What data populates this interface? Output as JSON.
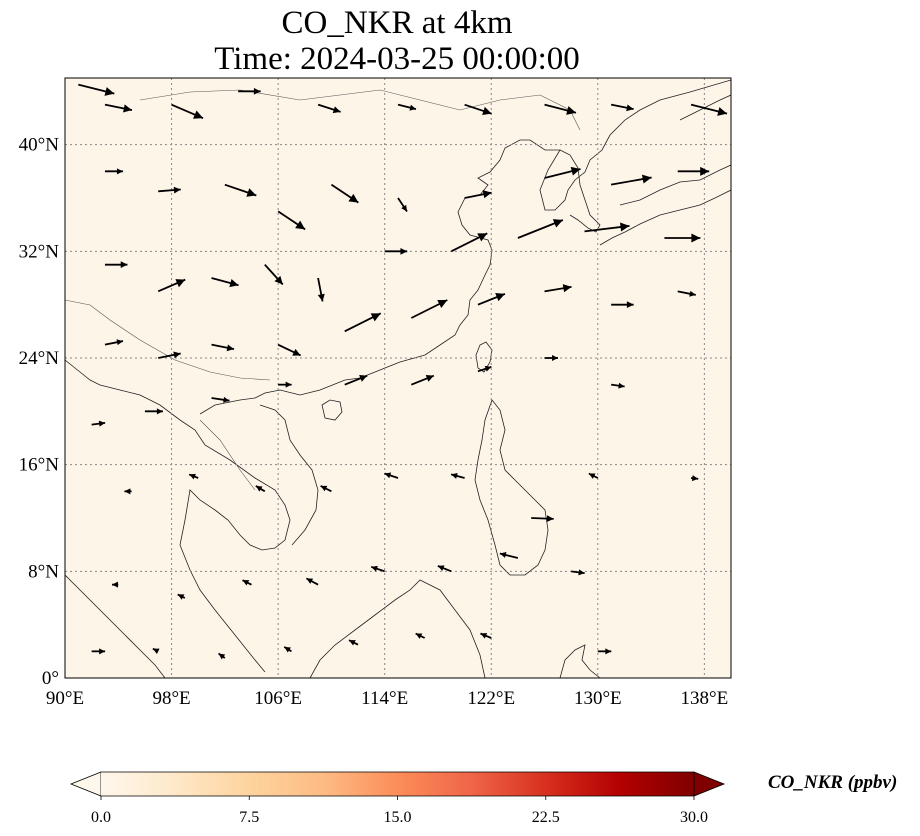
{
  "title": {
    "line1": "CO_NKR at 4km",
    "line2": "Time: 2024-03-25 00:00:00"
  },
  "map": {
    "lon_range": [
      90,
      140
    ],
    "lat_range": [
      0,
      45
    ],
    "background_color": "#fef5e9",
    "lon_ticks": [
      {
        "value": 90,
        "label": "90°E"
      },
      {
        "value": 98,
        "label": "98°E"
      },
      {
        "value": 106,
        "label": "106°E"
      },
      {
        "value": 114,
        "label": "114°E"
      },
      {
        "value": 122,
        "label": "122°E"
      },
      {
        "value": 130,
        "label": "130°E"
      },
      {
        "value": 138,
        "label": "138°E"
      }
    ],
    "lat_ticks": [
      {
        "value": 0,
        "label": "0°"
      },
      {
        "value": 8,
        "label": "8°N"
      },
      {
        "value": 16,
        "label": "16°N"
      },
      {
        "value": 24,
        "label": "24°N"
      },
      {
        "value": 32,
        "label": "32°N"
      },
      {
        "value": 40,
        "label": "40°N"
      }
    ],
    "gridlines": "dotted"
  },
  "colorbar": {
    "label": "CO_NKR (ppbv)",
    "colormap": "OrRd",
    "range": [
      0,
      30
    ],
    "extend": "both",
    "colors": [
      "#fff7ec",
      "#fee8c8",
      "#fdd49e",
      "#fdbb84",
      "#fc8d59",
      "#ef6548",
      "#d7301f",
      "#b30000",
      "#7f0000"
    ],
    "ticks": [
      {
        "value": 0,
        "label": "0.0"
      },
      {
        "value": 7.5,
        "label": "7.5"
      },
      {
        "value": 15,
        "label": "15.0"
      },
      {
        "value": 22.5,
        "label": "22.5"
      },
      {
        "value": 30,
        "label": "30.0"
      }
    ]
  },
  "chart_data": {
    "type": "map",
    "title": "CO_NKR at 4km",
    "subtitle": "Time: 2024-03-25 00:00:00",
    "variable": "CO_NKR",
    "units": "ppbv",
    "height": "4km",
    "time": "2024-03-25 00:00:00",
    "field_value_approx": 0.5,
    "wind_vectors": [
      {
        "lon": 91,
        "lat": 44.5,
        "u": 4,
        "v": -1
      },
      {
        "lon": 93,
        "lat": 43,
        "u": 3,
        "v": -0.6
      },
      {
        "lon": 98,
        "lat": 43,
        "u": 3.5,
        "v": -1.5
      },
      {
        "lon": 103,
        "lat": 44,
        "u": 2.5,
        "v": 0
      },
      {
        "lon": 109,
        "lat": 43,
        "u": 2.5,
        "v": -0.8
      },
      {
        "lon": 115,
        "lat": 43,
        "u": 2,
        "v": -0.5
      },
      {
        "lon": 120,
        "lat": 43,
        "u": 3,
        "v": -1
      },
      {
        "lon": 126,
        "lat": 43,
        "u": 3.5,
        "v": -0.9
      },
      {
        "lon": 131,
        "lat": 43,
        "u": 2.5,
        "v": -0.5
      },
      {
        "lon": 137,
        "lat": 43,
        "u": 4,
        "v": -1
      },
      {
        "lon": 93,
        "lat": 38,
        "u": 2,
        "v": 0
      },
      {
        "lon": 97,
        "lat": 36.5,
        "u": 2.5,
        "v": 0.2
      },
      {
        "lon": 102,
        "lat": 37,
        "u": 3.5,
        "v": -1.2
      },
      {
        "lon": 106,
        "lat": 35,
        "u": 3,
        "v": -2
      },
      {
        "lon": 110,
        "lat": 37,
        "u": 3,
        "v": -2
      },
      {
        "lon": 115,
        "lat": 36,
        "u": 1,
        "v": -1.5
      },
      {
        "lon": 120,
        "lat": 36,
        "u": 3,
        "v": 0.6
      },
      {
        "lon": 126,
        "lat": 37.5,
        "u": 4,
        "v": 1
      },
      {
        "lon": 131,
        "lat": 37,
        "u": 4.5,
        "v": 0.8
      },
      {
        "lon": 136,
        "lat": 38,
        "u": 3.5,
        "v": 0
      },
      {
        "lon": 93,
        "lat": 31,
        "u": 2.5,
        "v": 0
      },
      {
        "lon": 97,
        "lat": 29,
        "u": 3,
        "v": 1.3
      },
      {
        "lon": 101,
        "lat": 30,
        "u": 3,
        "v": -0.8
      },
      {
        "lon": 105,
        "lat": 31,
        "u": 2,
        "v": -2.2
      },
      {
        "lon": 109,
        "lat": 30,
        "u": 0.5,
        "v": -2.6
      },
      {
        "lon": 114,
        "lat": 32,
        "u": 2.5,
        "v": 0
      },
      {
        "lon": 119,
        "lat": 32,
        "u": 4,
        "v": 2
      },
      {
        "lon": 124,
        "lat": 33,
        "u": 5,
        "v": 2
      },
      {
        "lon": 129,
        "lat": 33.5,
        "u": 5,
        "v": 0.6
      },
      {
        "lon": 135,
        "lat": 33,
        "u": 4,
        "v": 0
      },
      {
        "lon": 93,
        "lat": 25,
        "u": 2,
        "v": 0.4
      },
      {
        "lon": 97,
        "lat": 24,
        "u": 2.5,
        "v": 0.5
      },
      {
        "lon": 101,
        "lat": 25,
        "u": 2.5,
        "v": -0.5
      },
      {
        "lon": 106,
        "lat": 25,
        "u": 2.5,
        "v": -1.2
      },
      {
        "lon": 111,
        "lat": 26,
        "u": 4,
        "v": 2
      },
      {
        "lon": 116,
        "lat": 27,
        "u": 4,
        "v": 2
      },
      {
        "lon": 121,
        "lat": 28,
        "u": 3,
        "v": 1.2
      },
      {
        "lon": 126,
        "lat": 29,
        "u": 3,
        "v": 0.5
      },
      {
        "lon": 131,
        "lat": 28,
        "u": 2.5,
        "v": 0
      },
      {
        "lon": 136,
        "lat": 29,
        "u": 2,
        "v": -0.4
      },
      {
        "lon": 92,
        "lat": 19,
        "u": 1.5,
        "v": 0.2
      },
      {
        "lon": 96,
        "lat": 20,
        "u": 2,
        "v": 0
      },
      {
        "lon": 101,
        "lat": 21,
        "u": 2,
        "v": -0.3
      },
      {
        "lon": 106,
        "lat": 22,
        "u": 1.5,
        "v": 0
      },
      {
        "lon": 111,
        "lat": 22,
        "u": 2.5,
        "v": 1
      },
      {
        "lon": 116,
        "lat": 22,
        "u": 2.5,
        "v": 1
      },
      {
        "lon": 121,
        "lat": 23,
        "u": 1.5,
        "v": 0.5
      },
      {
        "lon": 126,
        "lat": 24,
        "u": 1.5,
        "v": 0
      },
      {
        "lon": 131,
        "lat": 22,
        "u": 1.5,
        "v": -0.2
      },
      {
        "lon": 95,
        "lat": 14,
        "u": -0.8,
        "v": 0
      },
      {
        "lon": 100,
        "lat": 15,
        "u": -1,
        "v": 0.4
      },
      {
        "lon": 105,
        "lat": 14,
        "u": -1,
        "v": 0.6
      },
      {
        "lon": 110,
        "lat": 14,
        "u": -1.2,
        "v": 0.6
      },
      {
        "lon": 115,
        "lat": 15,
        "u": -1.5,
        "v": 0.5
      },
      {
        "lon": 120,
        "lat": 15,
        "u": -1.5,
        "v": 0.4
      },
      {
        "lon": 125,
        "lat": 12,
        "u": 2.5,
        "v": -0.1
      },
      {
        "lon": 130,
        "lat": 15,
        "u": -1,
        "v": 0.5
      },
      {
        "lon": 137,
        "lat": 15,
        "u": 0.8,
        "v": -0.1
      },
      {
        "lon": 94,
        "lat": 7,
        "u": -0.7,
        "v": 0
      },
      {
        "lon": 99,
        "lat": 6,
        "u": -0.8,
        "v": 0.4
      },
      {
        "lon": 104,
        "lat": 7,
        "u": -1,
        "v": 0.5
      },
      {
        "lon": 109,
        "lat": 7,
        "u": -1.3,
        "v": 0.7
      },
      {
        "lon": 114,
        "lat": 8,
        "u": -1.5,
        "v": 0.5
      },
      {
        "lon": 119,
        "lat": 8,
        "u": -1.5,
        "v": 0.6
      },
      {
        "lon": 124,
        "lat": 9,
        "u": -2,
        "v": 0.5
      },
      {
        "lon": 128,
        "lat": 8,
        "u": 1.5,
        "v": -0.2
      },
      {
        "lon": 92,
        "lat": 2,
        "u": 1.5,
        "v": 0
      },
      {
        "lon": 97,
        "lat": 2,
        "u": -0.6,
        "v": 0.3
      },
      {
        "lon": 102,
        "lat": 1.5,
        "u": -0.7,
        "v": 0.5
      },
      {
        "lon": 107,
        "lat": 2,
        "u": -0.8,
        "v": 0.5
      },
      {
        "lon": 112,
        "lat": 2.5,
        "u": -1,
        "v": 0.5
      },
      {
        "lon": 117,
        "lat": 3,
        "u": -1,
        "v": 0.5
      },
      {
        "lon": 122,
        "lat": 3,
        "u": -1.2,
        "v": 0.5
      },
      {
        "lon": 130,
        "lat": 2,
        "u": 1.5,
        "v": 0
      }
    ]
  }
}
